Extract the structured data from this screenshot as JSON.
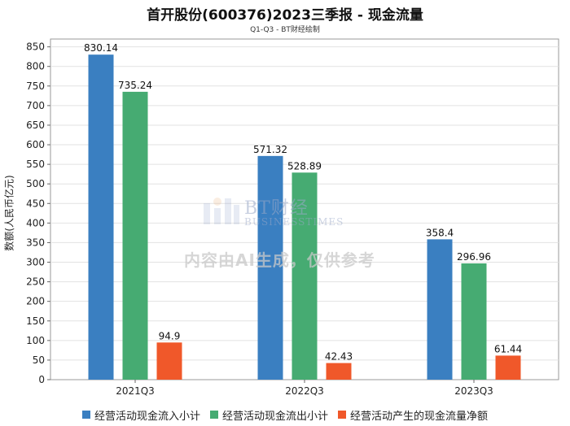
{
  "chart_data": {
    "type": "bar",
    "title": "首开股份(600376)2023三季报 - 现金流量",
    "subtitle": "Q1-Q3 - BT财经绘制",
    "xlabel": "",
    "ylabel": "数额(人民币亿元)",
    "ylim": [
      0,
      870
    ],
    "yticks": [
      0,
      50,
      100,
      150,
      200,
      250,
      300,
      350,
      400,
      450,
      500,
      550,
      600,
      650,
      700,
      750,
      800,
      850
    ],
    "grid": true,
    "categories": [
      "2021Q3",
      "2022Q3",
      "2023Q3"
    ],
    "series": [
      {
        "name": "经营活动现金流入小计",
        "color": "#3a7fc1",
        "values": [
          830.14,
          571.32,
          358.4
        ],
        "labels": [
          "830.14",
          "571.32",
          "358.4"
        ]
      },
      {
        "name": "经营活动现金流出小计",
        "color": "#46ab72",
        "values": [
          735.24,
          528.89,
          296.96
        ],
        "labels": [
          "735.24",
          "528.89",
          "296.96"
        ]
      },
      {
        "name": "经营活动产生的现金流量净额",
        "color": "#f0582a",
        "values": [
          94.9,
          42.43,
          61.44
        ],
        "labels": [
          "94.9",
          "42.43",
          "61.44"
        ]
      }
    ],
    "legend_position": "bottom"
  },
  "watermark": {
    "brand": "BT财经",
    "brand_sub": "BUSINESSTIMES",
    "note": "内容由AI生成，仅供参考"
  }
}
